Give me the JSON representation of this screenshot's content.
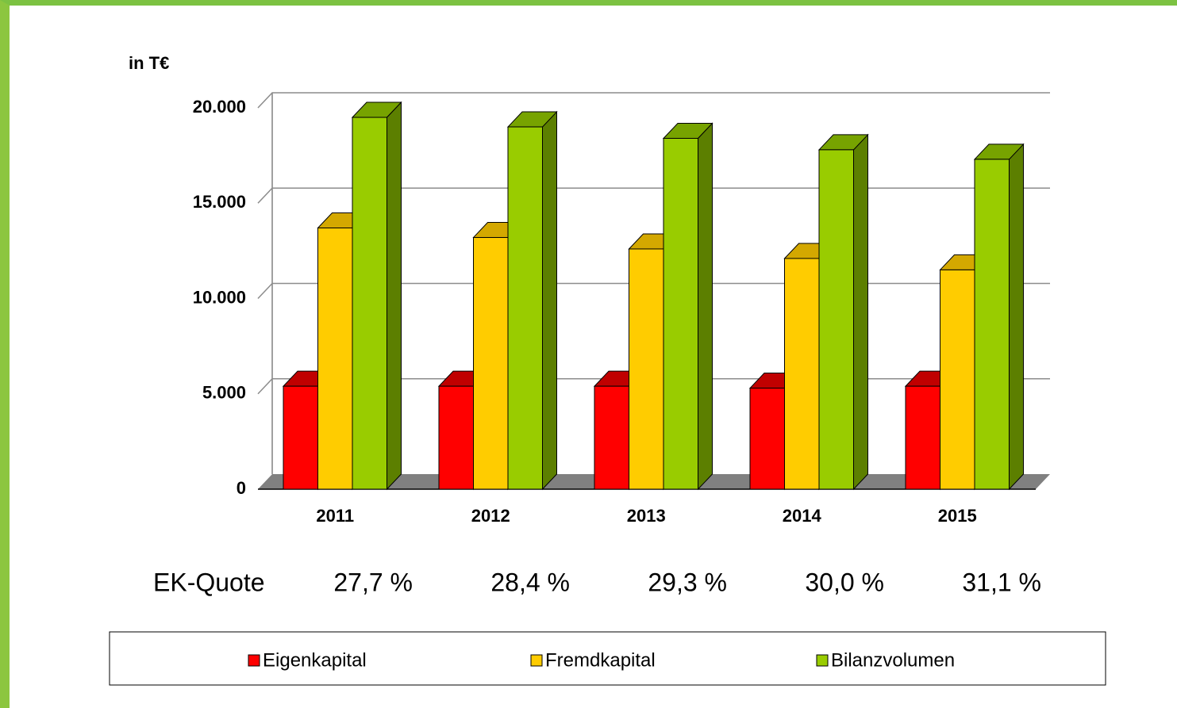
{
  "chart_data": {
    "type": "bar3d",
    "y_label": "in T€",
    "categories": [
      "2011",
      "2012",
      "2013",
      "2014",
      "2015"
    ],
    "series": [
      {
        "name": "Eigenkapital",
        "color": "#ff0000",
        "top_color": "#c00000",
        "side_color": "#990000",
        "values": [
          5400,
          5400,
          5400,
          5300,
          5400
        ]
      },
      {
        "name": "Fremdkapital",
        "color": "#ffcc00",
        "top_color": "#d4a800",
        "side_color": "#b38f00",
        "values": [
          13700,
          13200,
          12600,
          12100,
          11500
        ]
      },
      {
        "name": "Bilanzvolumen",
        "color": "#99cc00",
        "top_color": "#77a300",
        "side_color": "#5c7f00",
        "values": [
          19500,
          19000,
          18400,
          17800,
          17300
        ]
      }
    ],
    "ylim": [
      0,
      20000
    ],
    "yticks": [
      0,
      {
        "value": 5000,
        "label": "5.000"
      },
      {
        "value": 10000,
        "label": "10.000"
      },
      {
        "value": 15000,
        "label": "15.000"
      },
      {
        "value": 20000,
        "label": "20.000"
      }
    ],
    "grid": true,
    "ek_quote": {
      "label": "EK-Quote",
      "values": [
        27.7,
        28.4,
        29.3,
        30.0,
        31.1
      ],
      "value_labels": [
        "27,7 %",
        "28,4 %",
        "29,3 %",
        "30,0 %",
        "31,1 %"
      ]
    },
    "legend": "bottom"
  }
}
